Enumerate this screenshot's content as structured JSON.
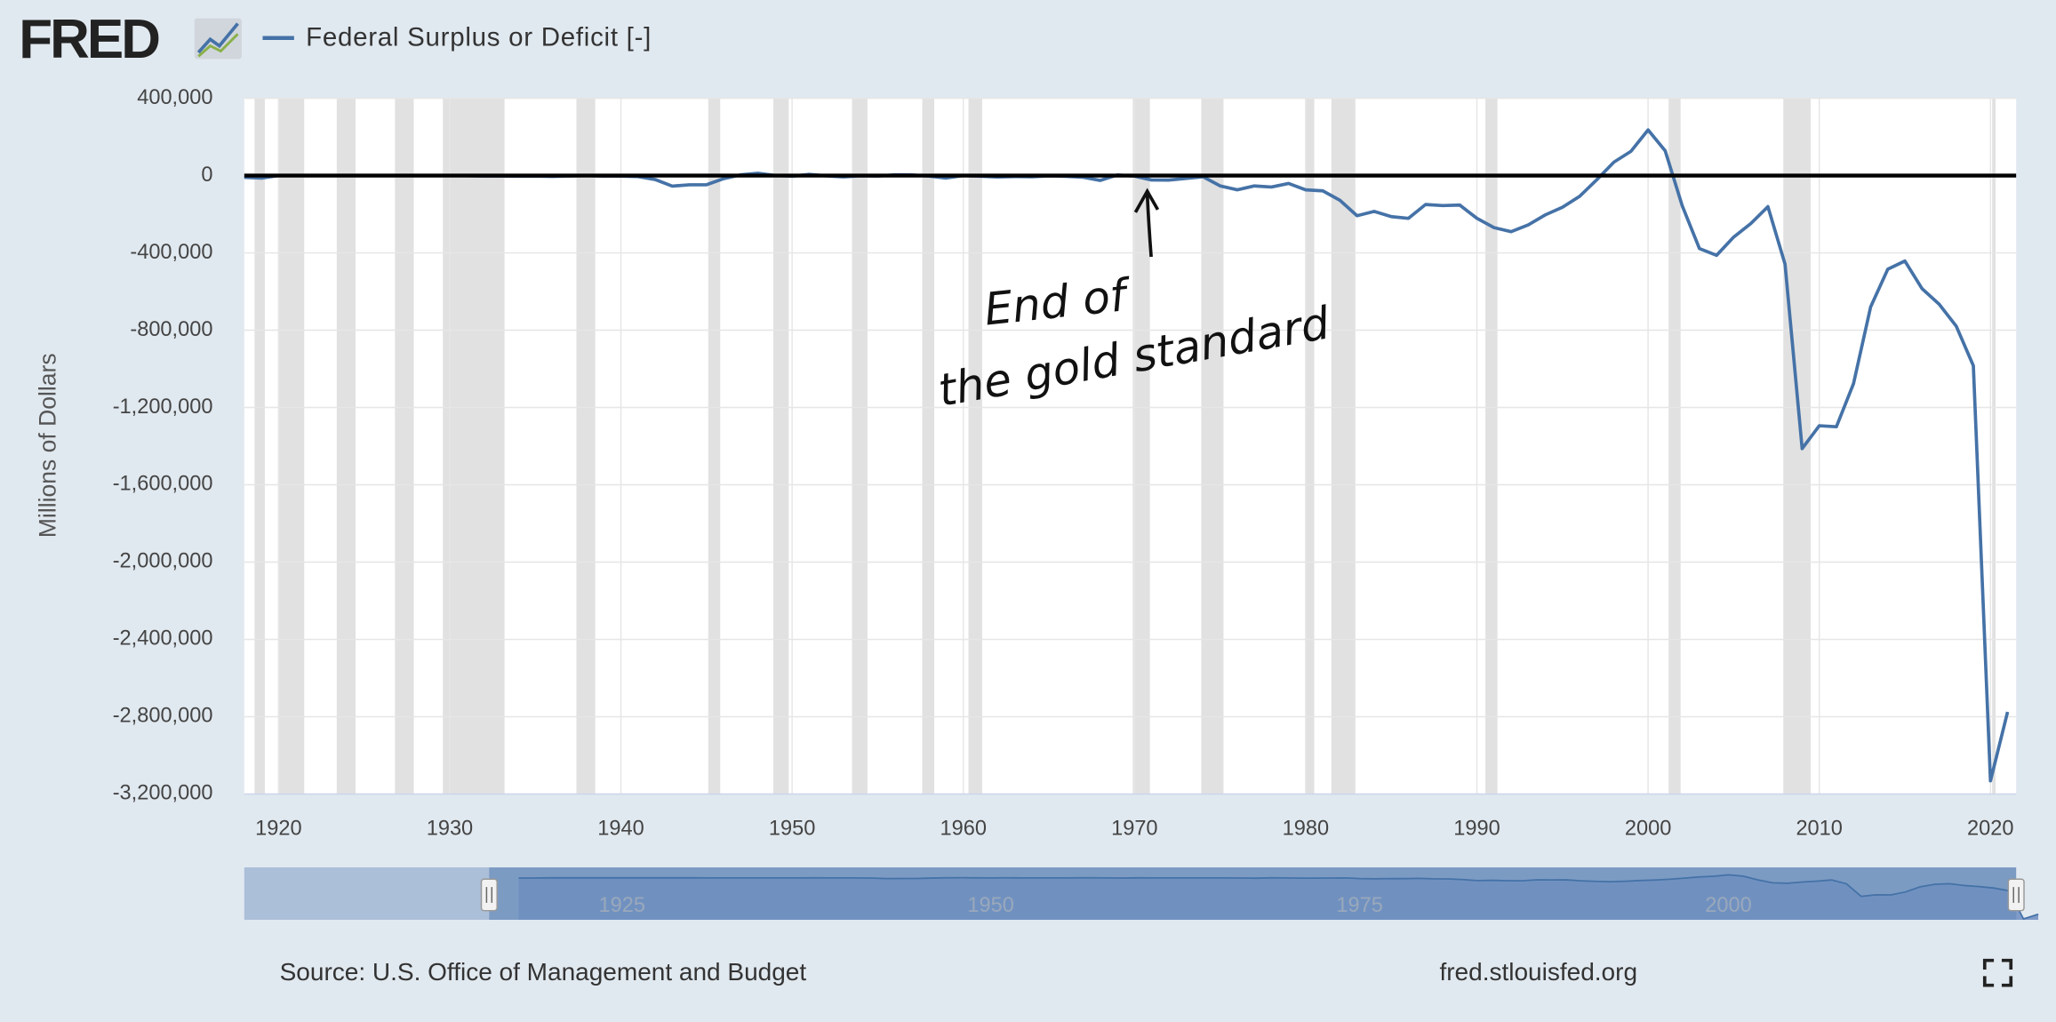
{
  "chart_data": {
    "type": "line",
    "logo": "FRED",
    "series": [
      {
        "name": "Federal Surplus or Deficit [-]",
        "color": "#4572a7",
        "x": [
          1918,
          1919,
          1920,
          1921,
          1922,
          1923,
          1924,
          1925,
          1926,
          1927,
          1928,
          1929,
          1930,
          1931,
          1932,
          1933,
          1934,
          1935,
          1936,
          1937,
          1938,
          1939,
          1940,
          1941,
          1942,
          1943,
          1944,
          1945,
          1946,
          1947,
          1948,
          1949,
          1950,
          1951,
          1952,
          1953,
          1954,
          1955,
          1956,
          1957,
          1958,
          1959,
          1960,
          1961,
          1962,
          1963,
          1964,
          1965,
          1966,
          1967,
          1968,
          1969,
          1970,
          1971,
          1972,
          1973,
          1974,
          1975,
          1976,
          1977,
          1978,
          1979,
          1980,
          1981,
          1982,
          1983,
          1984,
          1985,
          1986,
          1987,
          1988,
          1989,
          1990,
          1991,
          1992,
          1993,
          1994,
          1995,
          1996,
          1997,
          1998,
          1999,
          2000,
          2001,
          2002,
          2003,
          2004,
          2005,
          2006,
          2007,
          2008,
          2009,
          2010,
          2011,
          2012,
          2013,
          2014,
          2015,
          2016,
          2017,
          2018,
          2019,
          2020,
          2021
        ],
        "values": [
          -9032,
          -13363,
          291,
          509,
          736,
          713,
          963,
          717,
          865,
          1155,
          939,
          734,
          738,
          -462,
          -2735,
          -2602,
          -3586,
          -2803,
          -4304,
          -2193,
          -89,
          -2846,
          -2920,
          -4941,
          -20503,
          -54554,
          -47557,
          -47553,
          -15936,
          4018,
          11796,
          580,
          -3119,
          6102,
          -1519,
          -6493,
          -1154,
          -2993,
          3947,
          3412,
          -2769,
          -12849,
          301,
          -3335,
          -7146,
          -4756,
          -5915,
          -1411,
          -3698,
          -8643,
          -25161,
          3242,
          -2842,
          -23033,
          -23373,
          -14908,
          -6135,
          -53242,
          -73732,
          -53659,
          -59185,
          -40726,
          -73830,
          -78968,
          -127977,
          -207802,
          -185367,
          -212308,
          -221227,
          -149730,
          -155178,
          -152639,
          -221036,
          -269238,
          -290321,
          -255051,
          -203186,
          -163952,
          -107431,
          -21884,
          69270,
          125610,
          236241,
          128236,
          -157758,
          -377585,
          -412727,
          -318346,
          -248181,
          -160701,
          -458553,
          -1412688,
          -1294373,
          -1299599,
          -1076573,
          -679775,
          -484602,
          -441960,
          -584651,
          -665446,
          -779137,
          -983588,
          -3131917,
          -2775306
        ]
      }
    ],
    "ylabel": "Millions of Dollars",
    "xlim": [
      1918,
      2021.5
    ],
    "xticks": [
      1920,
      1930,
      1940,
      1950,
      1960,
      1970,
      1980,
      1990,
      2000,
      2010,
      2020
    ],
    "ylim": [
      -3200000,
      400000
    ],
    "yticks": [
      {
        "value": 400000,
        "label": "400,000"
      },
      0,
      {
        "value": -400000,
        "label": "-400,000"
      },
      {
        "value": -800000,
        "label": "-800,000"
      },
      {
        "value": -1200000,
        "label": "-1,200,000"
      },
      {
        "value": -1600000,
        "label": "-1,600,000"
      },
      {
        "value": -2000000,
        "label": "-2,000,000"
      },
      {
        "value": -2400000,
        "label": "-2,400,000"
      },
      {
        "value": -2800000,
        "label": "-2,800,000"
      },
      {
        "value": -3200000,
        "label": "-3,200,000"
      }
    ],
    "grid": true,
    "hline": 0,
    "recessions": [
      [
        1918.6,
        1919.2
      ],
      [
        1920.0,
        1921.5
      ],
      [
        1923.4,
        1924.5
      ],
      [
        1926.8,
        1927.9
      ],
      [
        1929.6,
        1933.2
      ],
      [
        1937.4,
        1938.5
      ],
      [
        1945.1,
        1945.8
      ],
      [
        1948.9,
        1949.8
      ],
      [
        1953.5,
        1954.4
      ],
      [
        1957.6,
        1958.3
      ],
      [
        1960.3,
        1961.1
      ],
      [
        1969.9,
        1970.9
      ],
      [
        1973.9,
        1975.2
      ],
      [
        1980.0,
        1980.5
      ],
      [
        1981.5,
        1982.9
      ],
      [
        1990.5,
        1991.2
      ],
      [
        2001.2,
        2001.9
      ],
      [
        2007.9,
        2009.5
      ],
      [
        2020.1,
        2020.3
      ]
    ],
    "annotations": [
      "End of",
      "the gold standard"
    ],
    "navigator": {
      "xlim": [
        1899.4,
        2019.5
      ],
      "xticks": [
        1925,
        1950,
        1975,
        2000
      ],
      "selection": [
        1916,
        2019.5
      ]
    },
    "source": "Source: U.S. Office of Management and Budget",
    "site": "fred.stlouisfed.org"
  }
}
